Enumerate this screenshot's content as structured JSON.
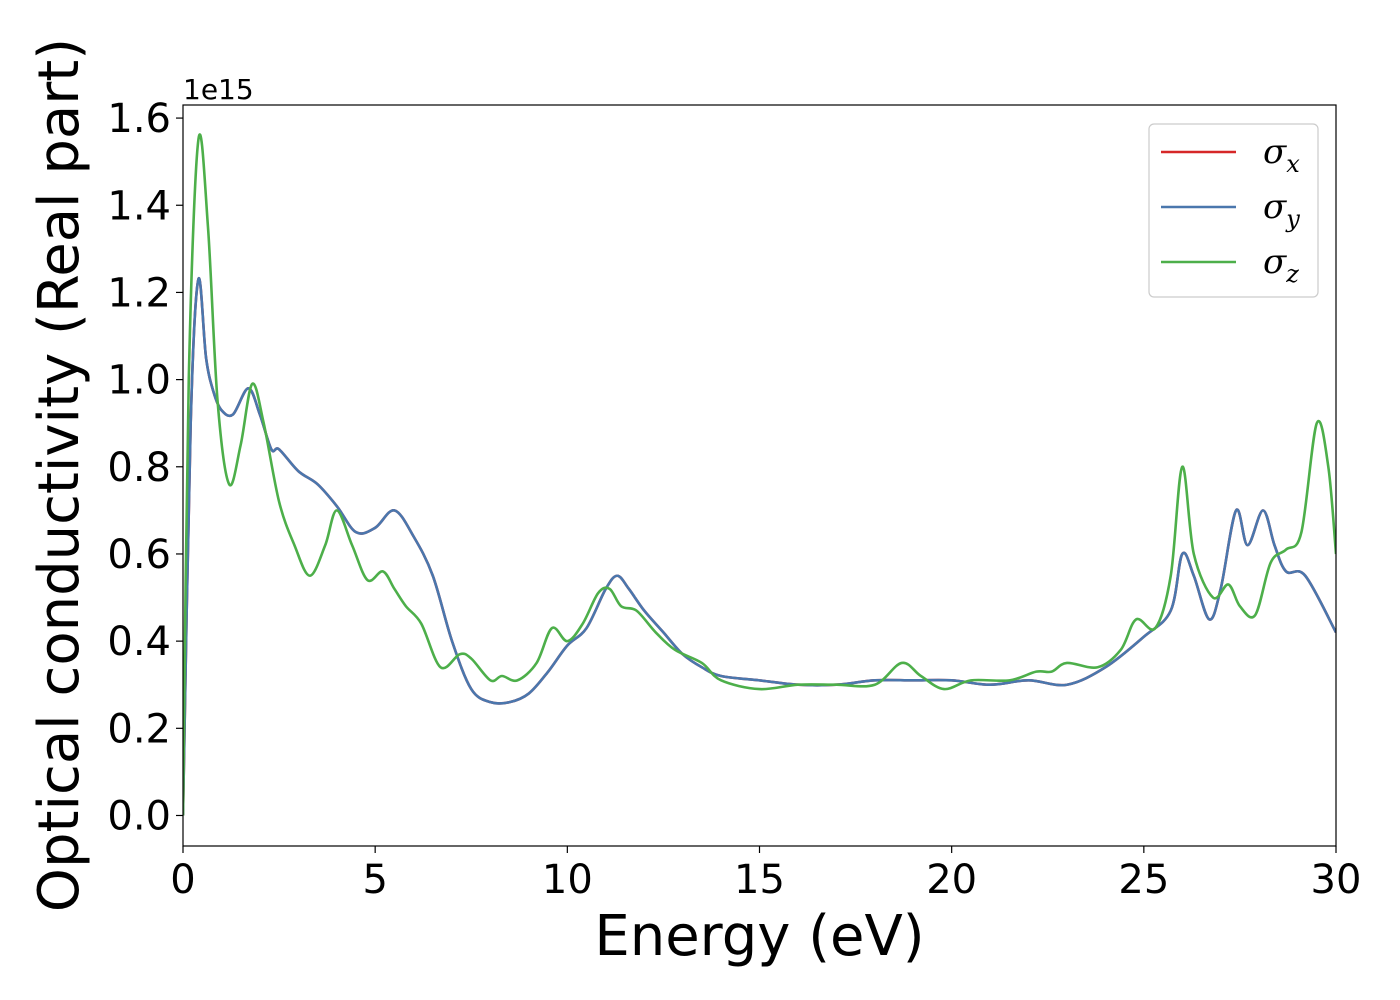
{
  "chart_data": {
    "type": "line",
    "title": "",
    "xlabel": "Energy (eV)",
    "ylabel": "Optical conductivity (Real part)",
    "y_offset_label": "1e15",
    "xlim": [
      0,
      30
    ],
    "ylim": [
      -0.07,
      1.63
    ],
    "x_ticks": [
      0,
      5,
      10,
      15,
      20,
      25,
      30
    ],
    "x_tick_labels": [
      "0",
      "5",
      "10",
      "15",
      "20",
      "25",
      "30"
    ],
    "y_ticks": [
      0.0,
      0.2,
      0.4,
      0.6,
      0.8,
      1.0,
      1.2,
      1.4,
      1.6
    ],
    "y_tick_labels": [
      "0.0",
      "0.2",
      "0.4",
      "0.6",
      "0.8",
      "1.0",
      "1.2",
      "1.4",
      "1.6"
    ],
    "grid": false,
    "legend_position": "top-right",
    "series": [
      {
        "name": "σx",
        "symbol": "σ",
        "subscript": "x",
        "color": "#d62728",
        "x": [
          0,
          0.2,
          0.4,
          0.6,
          0.8,
          1.0,
          1.3,
          1.7,
          2.0,
          2.3,
          2.5,
          3.0,
          3.5,
          4.0,
          4.5,
          5.0,
          5.5,
          6.0,
          6.5,
          7.0,
          7.5,
          8.0,
          8.5,
          9.0,
          9.5,
          10.0,
          10.5,
          11.0,
          11.3,
          11.6,
          12.0,
          12.5,
          13.0,
          13.5,
          14.0,
          15.0,
          16.0,
          17.0,
          18.0,
          19.0,
          20.0,
          21.0,
          22.0,
          23.0,
          24.0,
          25.0,
          25.7,
          26.0,
          26.3,
          26.7,
          27.0,
          27.4,
          27.7,
          28.1,
          28.4,
          28.7,
          29.2,
          30.0
        ],
        "y": [
          0.0,
          0.9,
          1.23,
          1.05,
          0.97,
          0.93,
          0.92,
          0.98,
          0.92,
          0.84,
          0.84,
          0.79,
          0.76,
          0.71,
          0.65,
          0.66,
          0.7,
          0.64,
          0.55,
          0.4,
          0.29,
          0.26,
          0.26,
          0.28,
          0.33,
          0.39,
          0.43,
          0.52,
          0.55,
          0.52,
          0.47,
          0.42,
          0.37,
          0.34,
          0.32,
          0.31,
          0.3,
          0.3,
          0.31,
          0.31,
          0.31,
          0.3,
          0.31,
          0.3,
          0.34,
          0.41,
          0.47,
          0.6,
          0.55,
          0.45,
          0.52,
          0.7,
          0.62,
          0.7,
          0.62,
          0.56,
          0.55,
          0.42
        ]
      },
      {
        "name": "σy",
        "symbol": "σ",
        "subscript": "y",
        "color": "#4a77ad",
        "x": [
          0,
          0.2,
          0.4,
          0.6,
          0.8,
          1.0,
          1.3,
          1.7,
          2.0,
          2.3,
          2.5,
          3.0,
          3.5,
          4.0,
          4.5,
          5.0,
          5.5,
          6.0,
          6.5,
          7.0,
          7.5,
          8.0,
          8.5,
          9.0,
          9.5,
          10.0,
          10.5,
          11.0,
          11.3,
          11.6,
          12.0,
          12.5,
          13.0,
          13.5,
          14.0,
          15.0,
          16.0,
          17.0,
          18.0,
          19.0,
          20.0,
          21.0,
          22.0,
          23.0,
          24.0,
          25.0,
          25.7,
          26.0,
          26.3,
          26.7,
          27.0,
          27.4,
          27.7,
          28.1,
          28.4,
          28.7,
          29.2,
          30.0
        ],
        "y": [
          0.0,
          0.9,
          1.23,
          1.05,
          0.97,
          0.93,
          0.92,
          0.98,
          0.92,
          0.84,
          0.84,
          0.79,
          0.76,
          0.71,
          0.65,
          0.66,
          0.7,
          0.64,
          0.55,
          0.4,
          0.29,
          0.26,
          0.26,
          0.28,
          0.33,
          0.39,
          0.43,
          0.52,
          0.55,
          0.52,
          0.47,
          0.42,
          0.37,
          0.34,
          0.32,
          0.31,
          0.3,
          0.3,
          0.31,
          0.31,
          0.31,
          0.3,
          0.31,
          0.3,
          0.34,
          0.41,
          0.47,
          0.6,
          0.55,
          0.45,
          0.52,
          0.7,
          0.62,
          0.7,
          0.62,
          0.56,
          0.55,
          0.42
        ]
      },
      {
        "name": "σz",
        "symbol": "σ",
        "subscript": "z",
        "color": "#4daf4a",
        "x": [
          0,
          0.15,
          0.4,
          0.65,
          0.9,
          1.2,
          1.5,
          1.8,
          2.1,
          2.5,
          2.9,
          3.3,
          3.7,
          4.0,
          4.4,
          4.8,
          5.2,
          5.5,
          5.8,
          6.2,
          6.7,
          7.2,
          7.5,
          8.0,
          8.3,
          8.7,
          9.2,
          9.6,
          10.0,
          10.4,
          10.8,
          11.1,
          11.4,
          11.8,
          12.3,
          12.8,
          13.5,
          14.0,
          15.0,
          16.0,
          17.0,
          18.0,
          18.7,
          19.2,
          19.8,
          20.5,
          21.5,
          22.2,
          22.6,
          23.0,
          23.8,
          24.4,
          24.8,
          25.3,
          25.7,
          26.0,
          26.3,
          26.8,
          27.2,
          27.5,
          27.9,
          28.3,
          28.7,
          29.1,
          29.5,
          29.8,
          30.0
        ],
        "y": [
          0.0,
          1.0,
          1.55,
          1.35,
          0.95,
          0.76,
          0.85,
          0.99,
          0.9,
          0.72,
          0.62,
          0.55,
          0.62,
          0.7,
          0.62,
          0.54,
          0.56,
          0.52,
          0.48,
          0.44,
          0.34,
          0.37,
          0.36,
          0.31,
          0.32,
          0.31,
          0.35,
          0.43,
          0.4,
          0.44,
          0.51,
          0.52,
          0.48,
          0.47,
          0.42,
          0.38,
          0.35,
          0.31,
          0.29,
          0.3,
          0.3,
          0.3,
          0.35,
          0.32,
          0.29,
          0.31,
          0.31,
          0.33,
          0.33,
          0.35,
          0.34,
          0.38,
          0.45,
          0.43,
          0.55,
          0.8,
          0.6,
          0.5,
          0.53,
          0.48,
          0.46,
          0.58,
          0.61,
          0.65,
          0.9,
          0.8,
          0.6
        ]
      }
    ]
  }
}
